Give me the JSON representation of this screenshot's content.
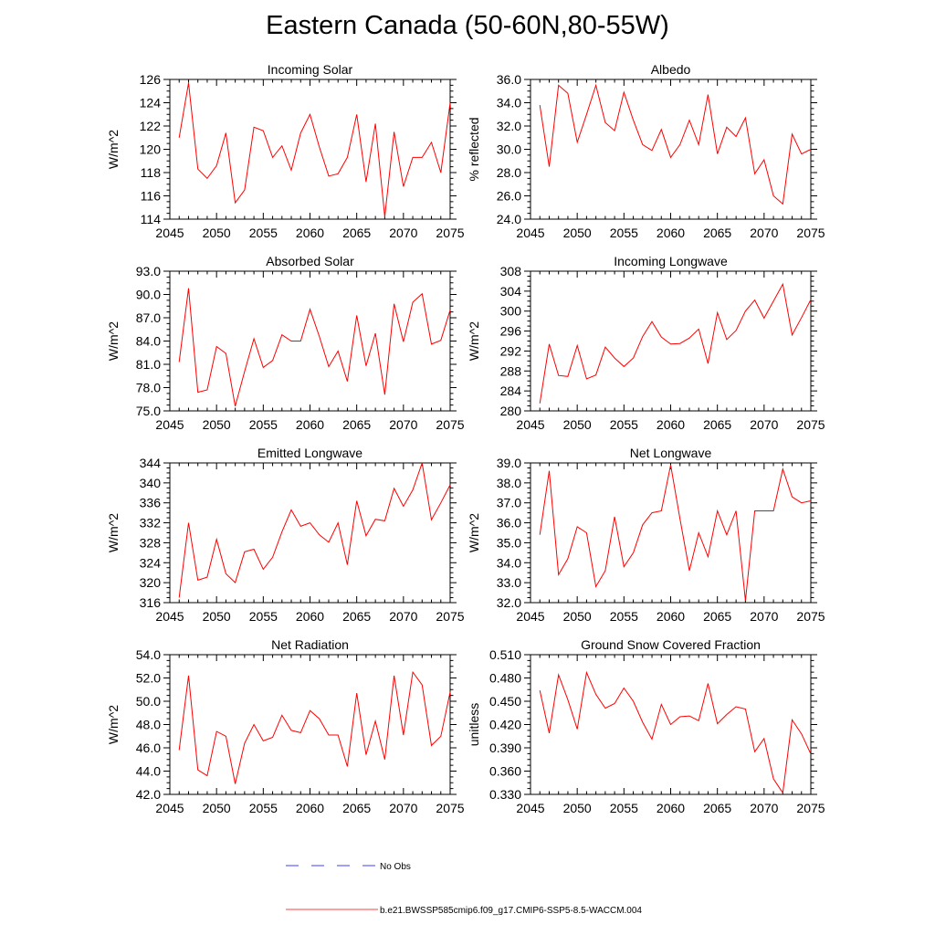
{
  "title": "Eastern Canada (50-60N,80-55W)",
  "colors": {
    "series": "#ff0000",
    "obs": "#0000ff",
    "axis": "#000000"
  },
  "legend": {
    "obs_label": "No Obs",
    "model_label": "b.e21.BWSSP585cmip6.f09_g17.CMIP6-SSP5-8.5-WACCM.004"
  },
  "chart_data": [
    {
      "type": "line",
      "title": "Incoming Solar",
      "ylabel": "W/m^2",
      "xlabel": "",
      "xlim": [
        2045,
        2075
      ],
      "xticks": [
        "2045",
        "2050",
        "2055",
        "2060",
        "2065",
        "2070",
        "2075"
      ],
      "ylim": [
        114,
        126
      ],
      "yticks": [
        "114",
        "116",
        "118",
        "120",
        "122",
        "124",
        "126"
      ],
      "x": [
        2046,
        2047,
        2048,
        2049,
        2050,
        2051,
        2052,
        2053,
        2054,
        2055,
        2056,
        2057,
        2058,
        2059,
        2060,
        2061,
        2062,
        2063,
        2064,
        2065,
        2066,
        2067,
        2068,
        2069,
        2070,
        2071,
        2072,
        2073,
        2074,
        2075
      ],
      "values": [
        121.0,
        125.7,
        118.3,
        117.5,
        118.6,
        121.4,
        115.4,
        116.5,
        121.9,
        121.6,
        119.3,
        120.3,
        118.2,
        121.4,
        123.0,
        120.2,
        117.7,
        117.9,
        119.3,
        123.0,
        117.2,
        122.2,
        114.2,
        121.5,
        116.8,
        119.3,
        119.3,
        120.6,
        118.0,
        124.0
      ]
    },
    {
      "type": "line",
      "title": "Albedo",
      "ylabel": "% reflected",
      "xlabel": "",
      "xlim": [
        2045,
        2075
      ],
      "xticks": [
        "2045",
        "2050",
        "2055",
        "2060",
        "2065",
        "2070",
        "2075"
      ],
      "ylim": [
        24,
        36
      ],
      "yticks": [
        "24.0",
        "26.0",
        "28.0",
        "30.0",
        "32.0",
        "34.0",
        "36.0"
      ],
      "x": [
        2046,
        2047,
        2048,
        2049,
        2050,
        2051,
        2052,
        2053,
        2054,
        2055,
        2056,
        2057,
        2058,
        2059,
        2060,
        2061,
        2062,
        2063,
        2064,
        2065,
        2066,
        2067,
        2068,
        2069,
        2070,
        2071,
        2072,
        2073,
        2074,
        2075
      ],
      "values": [
        33.8,
        28.5,
        35.5,
        34.8,
        30.6,
        33.0,
        35.5,
        32.3,
        31.6,
        34.9,
        32.5,
        30.4,
        29.9,
        31.7,
        29.3,
        30.4,
        32.5,
        30.4,
        34.7,
        29.6,
        31.9,
        31.1,
        32.7,
        27.9,
        29.1,
        26.0,
        25.3,
        31.3,
        29.6,
        30.0
      ]
    },
    {
      "type": "line",
      "title": "Absorbed Solar",
      "ylabel": "W/m^2",
      "xlabel": "",
      "xlim": [
        2045,
        2075
      ],
      "xticks": [
        "2045",
        "2050",
        "2055",
        "2060",
        "2065",
        "2070",
        "2075"
      ],
      "ylim": [
        75,
        93
      ],
      "yticks": [
        "75.0",
        "78.0",
        "81.0",
        "84.0",
        "87.0",
        "90.0",
        "93.0"
      ],
      "x": [
        2046,
        2047,
        2048,
        2049,
        2050,
        2051,
        2052,
        2053,
        2054,
        2055,
        2056,
        2057,
        2058,
        2059,
        2060,
        2061,
        2062,
        2063,
        2064,
        2065,
        2066,
        2067,
        2068,
        2069,
        2070,
        2071,
        2072,
        2073,
        2074,
        2075
      ],
      "values": [
        81.3,
        90.8,
        77.4,
        77.7,
        83.3,
        82.4,
        75.6,
        80.1,
        84.3,
        80.6,
        81.5,
        84.8,
        84.0,
        84.0,
        88.1,
        84.6,
        80.7,
        82.7,
        78.8,
        87.3,
        80.8,
        85.0,
        77.1,
        88.8,
        83.9,
        89.0,
        90.1,
        83.6,
        84.1,
        88.0
      ]
    },
    {
      "type": "line",
      "title": "Incoming Longwave",
      "ylabel": "W/m^2",
      "xlabel": "",
      "xlim": [
        2045,
        2075
      ],
      "xticks": [
        "2045",
        "2050",
        "2055",
        "2060",
        "2065",
        "2070",
        "2075"
      ],
      "ylim": [
        280,
        308
      ],
      "yticks": [
        "280",
        "284",
        "288",
        "292",
        "296",
        "300",
        "304",
        "308"
      ],
      "x": [
        2046,
        2047,
        2048,
        2049,
        2050,
        2051,
        2052,
        2053,
        2054,
        2055,
        2056,
        2057,
        2058,
        2059,
        2060,
        2061,
        2062,
        2063,
        2064,
        2065,
        2066,
        2067,
        2068,
        2069,
        2070,
        2071,
        2072,
        2073,
        2074,
        2075
      ],
      "values": [
        281.5,
        293.4,
        287.1,
        286.9,
        293.1,
        286.4,
        287.2,
        292.8,
        290.6,
        288.9,
        290.6,
        294.9,
        297.9,
        294.8,
        293.4,
        293.5,
        294.6,
        296.4,
        289.5,
        299.7,
        294.3,
        296.1,
        300.0,
        302.2,
        298.6,
        302.0,
        305.4,
        295.2,
        298.7,
        302.3
      ]
    },
    {
      "type": "line",
      "title": "Emitted Longwave",
      "ylabel": "W/m^2",
      "xlabel": "",
      "xlim": [
        2045,
        2075
      ],
      "xticks": [
        "2045",
        "2050",
        "2055",
        "2060",
        "2065",
        "2070",
        "2075"
      ],
      "ylim": [
        316,
        344
      ],
      "yticks": [
        "316",
        "320",
        "324",
        "328",
        "332",
        "336",
        "340",
        "344"
      ],
      "x": [
        2046,
        2047,
        2048,
        2049,
        2050,
        2051,
        2052,
        2053,
        2054,
        2055,
        2056,
        2057,
        2058,
        2059,
        2060,
        2061,
        2062,
        2063,
        2064,
        2065,
        2066,
        2067,
        2068,
        2069,
        2070,
        2071,
        2072,
        2073,
        2074,
        2075
      ],
      "values": [
        317.0,
        332.0,
        320.5,
        321.1,
        328.7,
        321.8,
        320.0,
        326.2,
        326.7,
        322.7,
        325.1,
        330.2,
        334.6,
        331.3,
        332.0,
        329.6,
        328.1,
        332.0,
        323.6,
        336.4,
        329.4,
        332.7,
        332.4,
        338.9,
        335.3,
        338.6,
        344.0,
        332.6,
        336.0,
        339.6
      ]
    },
    {
      "type": "line",
      "title": "Net Longwave",
      "ylabel": "W/m^2",
      "xlabel": "",
      "xlim": [
        2045,
        2075
      ],
      "xticks": [
        "2045",
        "2050",
        "2055",
        "2060",
        "2065",
        "2070",
        "2075"
      ],
      "ylim": [
        32,
        39
      ],
      "yticks": [
        "32.0",
        "33.0",
        "34.0",
        "35.0",
        "36.0",
        "37.0",
        "38.0",
        "39.0"
      ],
      "x": [
        2046,
        2047,
        2048,
        2049,
        2050,
        2051,
        2052,
        2053,
        2054,
        2055,
        2056,
        2057,
        2058,
        2059,
        2060,
        2061,
        2062,
        2063,
        2064,
        2065,
        2066,
        2067,
        2068,
        2069,
        2070,
        2071,
        2072,
        2073,
        2074,
        2075
      ],
      "values": [
        35.4,
        38.6,
        33.4,
        34.2,
        35.8,
        35.5,
        32.8,
        33.6,
        36.3,
        33.8,
        34.5,
        35.9,
        36.5,
        36.6,
        38.9,
        36.2,
        33.6,
        35.5,
        34.3,
        36.6,
        35.4,
        36.6,
        32.1,
        36.6,
        36.6,
        36.6,
        38.7,
        37.3,
        37.0,
        37.1
      ]
    },
    {
      "type": "line",
      "title": "Net Radiation",
      "ylabel": "W/m^2",
      "xlabel": "",
      "xlim": [
        2045,
        2075
      ],
      "xticks": [
        "2045",
        "2050",
        "2055",
        "2060",
        "2065",
        "2070",
        "2075"
      ],
      "ylim": [
        42,
        54
      ],
      "yticks": [
        "42.0",
        "44.0",
        "46.0",
        "48.0",
        "50.0",
        "52.0",
        "54.0"
      ],
      "x": [
        2046,
        2047,
        2048,
        2049,
        2050,
        2051,
        2052,
        2053,
        2054,
        2055,
        2056,
        2057,
        2058,
        2059,
        2060,
        2061,
        2062,
        2063,
        2064,
        2065,
        2066,
        2067,
        2068,
        2069,
        2070,
        2071,
        2072,
        2073,
        2074,
        2075
      ],
      "values": [
        45.8,
        52.2,
        44.1,
        43.6,
        47.4,
        47.0,
        42.9,
        46.4,
        48.0,
        46.6,
        46.9,
        48.8,
        47.5,
        47.3,
        49.2,
        48.5,
        47.1,
        47.1,
        44.4,
        50.7,
        45.4,
        48.3,
        45.0,
        52.2,
        47.1,
        52.5,
        51.4,
        46.2,
        47.0,
        50.8
      ]
    },
    {
      "type": "line",
      "title": "Ground Snow Covered Fraction",
      "ylabel": "unitless",
      "xlabel": "",
      "xlim": [
        2045,
        2075
      ],
      "xticks": [
        "2045",
        "2050",
        "2055",
        "2060",
        "2065",
        "2070",
        "2075"
      ],
      "ylim": [
        0.33,
        0.51
      ],
      "yticks": [
        "0.330",
        "0.360",
        "0.390",
        "0.420",
        "0.450",
        "0.480",
        "0.510"
      ],
      "x": [
        2046,
        2047,
        2048,
        2049,
        2050,
        2051,
        2052,
        2053,
        2054,
        2055,
        2056,
        2057,
        2058,
        2059,
        2060,
        2061,
        2062,
        2063,
        2064,
        2065,
        2066,
        2067,
        2068,
        2069,
        2070,
        2071,
        2072,
        2073,
        2074,
        2075
      ],
      "values": [
        0.464,
        0.409,
        0.484,
        0.452,
        0.414,
        0.487,
        0.459,
        0.441,
        0.447,
        0.467,
        0.45,
        0.423,
        0.401,
        0.446,
        0.42,
        0.43,
        0.431,
        0.425,
        0.473,
        0.421,
        0.433,
        0.443,
        0.44,
        0.385,
        0.402,
        0.35,
        0.332,
        0.426,
        0.408,
        0.382
      ]
    }
  ]
}
